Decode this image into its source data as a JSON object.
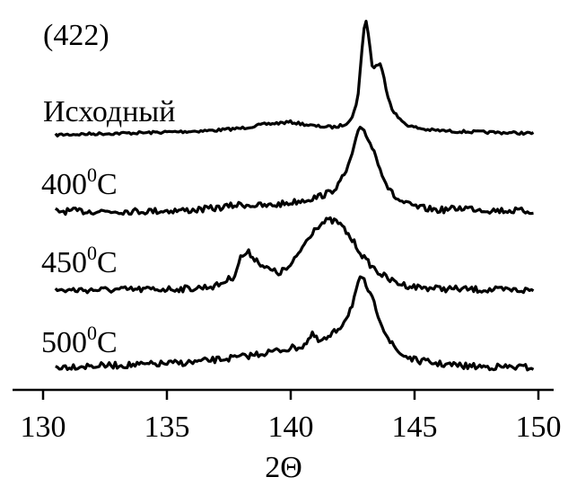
{
  "chart_data": {
    "type": "line",
    "title": "(422)",
    "xlabel": "2Θ",
    "ylabel": "",
    "xlim": [
      130,
      150
    ],
    "xticks": [
      130,
      135,
      140,
      145,
      150
    ],
    "y_axis_shown": false,
    "grid": false,
    "legend": "inline labels left of each curve",
    "line_color": "#000000",
    "series": [
      {
        "name": "Исходный",
        "x": [
          130.5,
          132,
          134,
          136,
          137,
          138,
          139,
          140,
          141,
          141.8,
          142.2,
          142.5,
          142.7,
          142.85,
          142.95,
          143.05,
          143.15,
          143.3,
          143.45,
          143.6,
          143.75,
          143.9,
          144.1,
          144.4,
          144.8,
          145.5,
          146.5,
          148,
          149.8
        ],
        "y": [
          0.05,
          0.07,
          0.09,
          0.12,
          0.14,
          0.18,
          0.26,
          0.3,
          0.22,
          0.2,
          0.26,
          0.4,
          0.75,
          1.55,
          2.1,
          2.3,
          1.95,
          1.35,
          1.4,
          1.45,
          1.2,
          0.85,
          0.55,
          0.35,
          0.22,
          0.15,
          0.12,
          0.1,
          0.08
        ]
      },
      {
        "name": "400",
        "superscript": "0",
        "unit": "C",
        "x": [
          130.5,
          132,
          134,
          136,
          137,
          138,
          139,
          140,
          141,
          141.6,
          142,
          142.3,
          142.55,
          142.75,
          142.9,
          143.05,
          143.2,
          143.4,
          143.6,
          143.8,
          144,
          144.3,
          144.7,
          145.2,
          146,
          147,
          148,
          149.8
        ],
        "y": [
          0.05,
          0.05,
          0.05,
          0.08,
          0.14,
          0.25,
          0.2,
          0.3,
          0.45,
          0.6,
          0.9,
          1.3,
          1.9,
          2.4,
          2.5,
          2.3,
          2.05,
          1.75,
          1.35,
          0.95,
          0.65,
          0.4,
          0.25,
          0.15,
          0.08,
          0.15,
          0.08,
          0.05
        ]
      },
      {
        "name": "450",
        "superscript": "0",
        "unit": "C",
        "x": [
          130.5,
          132,
          134,
          136,
          137,
          137.7,
          138,
          138.3,
          138.6,
          139,
          139.5,
          140,
          140.5,
          141,
          141.5,
          141.9,
          142.2,
          142.6,
          143,
          143.5,
          144,
          144.5,
          145,
          146,
          147,
          148,
          149.8
        ],
        "y": [
          0.05,
          0.06,
          0.07,
          0.1,
          0.18,
          0.45,
          1.05,
          1.15,
          0.95,
          0.7,
          0.55,
          0.75,
          1.35,
          1.9,
          2.1,
          2.05,
          1.8,
          1.4,
          0.95,
          0.6,
          0.35,
          0.22,
          0.15,
          0.1,
          0.08,
          0.06,
          0.05
        ]
      },
      {
        "name": "500",
        "superscript": "0",
        "unit": "C",
        "x": [
          130.5,
          132,
          134,
          136,
          138,
          139.5,
          140.5,
          140.9,
          141.1,
          141.5,
          142,
          142.3,
          142.5,
          142.65,
          142.8,
          142.95,
          143.15,
          143.4,
          143.7,
          144,
          144.4,
          145,
          146,
          147,
          148,
          149.8
        ],
        "y": [
          0.05,
          0.08,
          0.12,
          0.2,
          0.38,
          0.6,
          0.75,
          1.15,
          0.9,
          1.0,
          1.4,
          1.8,
          2.2,
          2.65,
          3.0,
          2.95,
          2.6,
          2.1,
          1.45,
          0.9,
          0.5,
          0.28,
          0.15,
          0.08,
          0.05,
          0.03
        ]
      }
    ]
  }
}
